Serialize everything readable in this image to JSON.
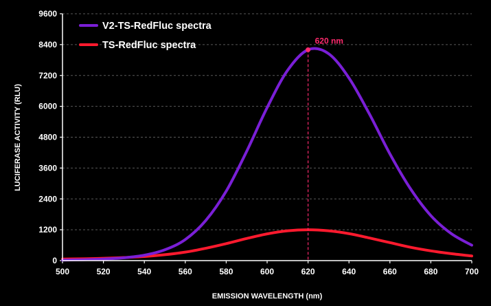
{
  "chart_data": {
    "type": "line",
    "title": "",
    "xlabel": "EMISSION WAVELENGTH (nm)",
    "ylabel": "LUCIFERASE ACTIVITY (RLU)",
    "xlim": [
      500,
      700
    ],
    "ylim": [
      0,
      9600
    ],
    "xticks": [
      "500",
      "520",
      "540",
      "560",
      "580",
      "600",
      "620",
      "640",
      "660",
      "680",
      "700"
    ],
    "yticks": [
      "0",
      "1200",
      "2400",
      "3600",
      "4800",
      "6000",
      "7200",
      "8400",
      "9600"
    ],
    "grid": "horizontal dashed",
    "legend_position": "top-left",
    "x": [
      500,
      510,
      520,
      530,
      540,
      550,
      560,
      570,
      580,
      590,
      600,
      610,
      620,
      630,
      640,
      650,
      660,
      670,
      680,
      690,
      700
    ],
    "series": [
      {
        "name": "V2-TS-RedFluc spectra",
        "color": "#7a1fd6",
        "values": [
          20,
          35,
          60,
          110,
          210,
          420,
          820,
          1560,
          2700,
          4250,
          5950,
          7400,
          8200,
          8050,
          7100,
          5700,
          4150,
          2800,
          1750,
          1050,
          600
        ]
      },
      {
        "name": "TS-RedFluc spectra",
        "color": "#ff1a2e",
        "values": [
          60,
          70,
          90,
          120,
          160,
          230,
          330,
          480,
          660,
          860,
          1040,
          1160,
          1200,
          1160,
          1050,
          880,
          700,
          520,
          380,
          270,
          180
        ]
      }
    ],
    "annotation": {
      "label": "620 nm",
      "x": 620,
      "y": 8200,
      "color": "#ff2a6d"
    }
  }
}
